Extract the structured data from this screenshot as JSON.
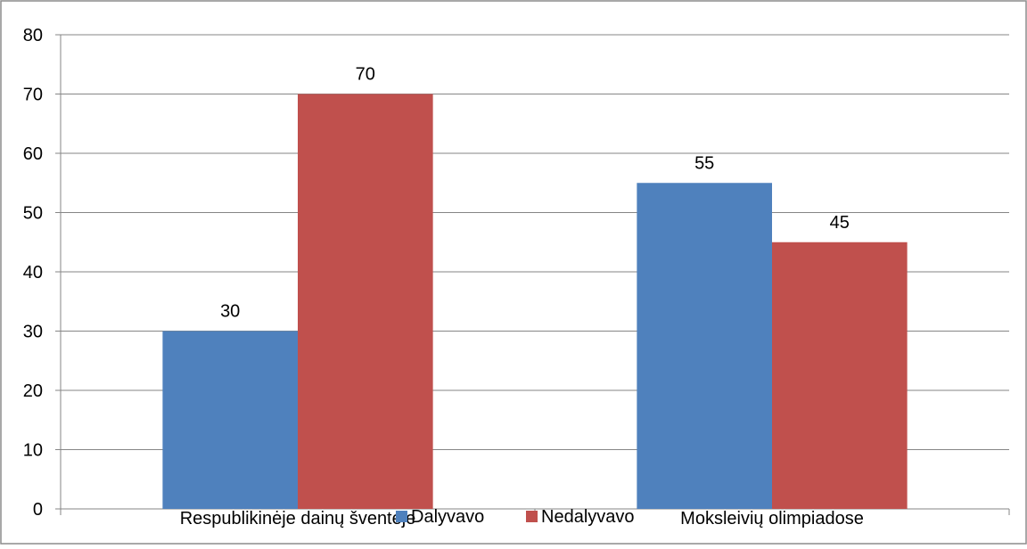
{
  "chart_data": {
    "type": "bar",
    "title": "",
    "xlabel": "",
    "ylabel": "",
    "categories": [
      "Respublikinėje dainų šventėje",
      "Moksleivių olimpiadose"
    ],
    "series": [
      {
        "name": "Dalyvavo",
        "values": [
          30,
          55
        ],
        "color": "#4F81BD"
      },
      {
        "name": "Nedalyvavo",
        "values": [
          70,
          45
        ],
        "color": "#C0504D"
      }
    ],
    "ylim": [
      0,
      80
    ],
    "yticks": [
      0,
      10,
      20,
      30,
      40,
      50,
      60,
      70,
      80
    ],
    "grid": true,
    "data_labels": true,
    "legend_position": "bottom"
  }
}
